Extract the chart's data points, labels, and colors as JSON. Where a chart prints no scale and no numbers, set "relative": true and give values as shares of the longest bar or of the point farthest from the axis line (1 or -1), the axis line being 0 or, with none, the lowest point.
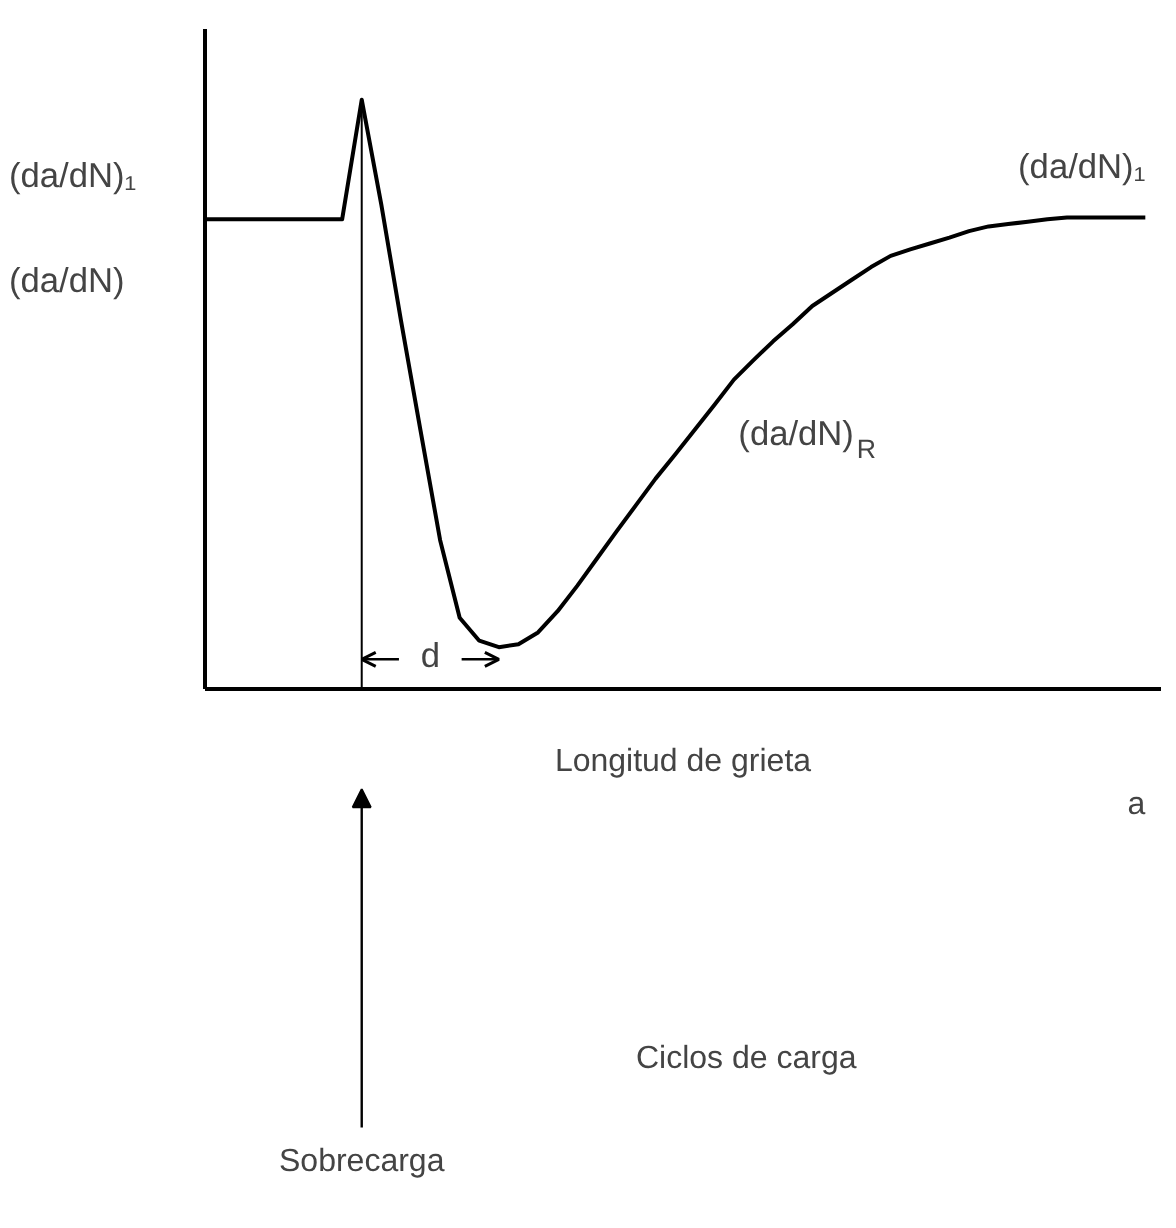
{
  "chart_data": {
    "type": "line",
    "relative": true,
    "xlabel": "Longitud de grieta",
    "ylabel": "(da/dN)",
    "grid": false,
    "categories": [
      null,
      null,
      null,
      null,
      null,
      null,
      null,
      null,
      null,
      null,
      null,
      null,
      null,
      null,
      null,
      null,
      null,
      null,
      null,
      null,
      null,
      null,
      null,
      null,
      null,
      null,
      null,
      null,
      null,
      null,
      null,
      null,
      null,
      null,
      null,
      null,
      null,
      null,
      null,
      null,
      null,
      null,
      null,
      null,
      null,
      null,
      null,
      null,
      null
    ],
    "series": [
      {
        "color": "#000000",
        "values": [
          0.797,
          0.797,
          0.797,
          0.797,
          0.797,
          0.797,
          0.797,
          0.797,
          1.0,
          0.822,
          0.626,
          0.439,
          0.253,
          0.121,
          0.082,
          0.071,
          0.076,
          0.096,
          0.132,
          0.175,
          0.221,
          0.267,
          0.312,
          0.357,
          0.398,
          0.44,
          0.482,
          0.525,
          0.558,
          0.59,
          0.619,
          0.65,
          0.672,
          0.694,
          0.716,
          0.735,
          0.746,
          0.756,
          0.766,
          0.777,
          0.785,
          0.789,
          0.793,
          0.797,
          0.8,
          0.8,
          0.8,
          0.8,
          0.8
        ]
      }
    ],
    "annotations": [
      "(da/dN)₁",
      "(da/dN)₁",
      "(da/dN)$_{R}$",
      "d",
      "a",
      "Ciclos de carga",
      "Sobrecarga"
    ]
  }
}
